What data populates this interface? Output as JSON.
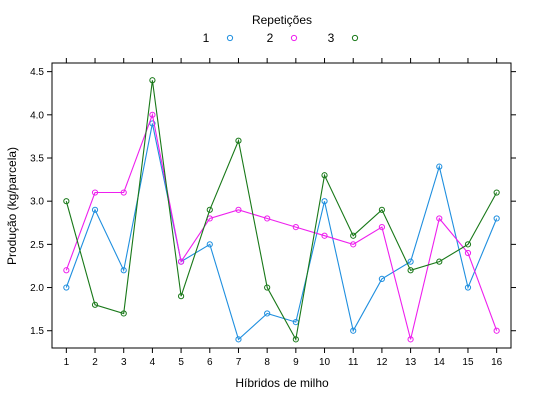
{
  "chart_data": {
    "type": "line",
    "title": "",
    "xlabel": "Híbridos de milho",
    "ylabel": "Produção (kg/parcela)",
    "legend_title": "Repetições",
    "legend_position": "top",
    "x": [
      "1",
      "2",
      "3",
      "4",
      "5",
      "6",
      "7",
      "8",
      "9",
      "10",
      "11",
      "12",
      "13",
      "14",
      "15",
      "16"
    ],
    "xlim": [
      0.5,
      16.5
    ],
    "ylim": [
      1.3,
      4.6
    ],
    "yticks": [
      "1.5",
      "2.0",
      "2.5",
      "3.0",
      "3.5",
      "4.0",
      "4.5"
    ],
    "grid": false,
    "series": [
      {
        "name": "1",
        "color": "#1f8fdf",
        "values": [
          2.0,
          2.9,
          2.2,
          3.9,
          2.3,
          2.5,
          1.4,
          1.7,
          1.6,
          3.0,
          1.5,
          2.1,
          2.3,
          3.4,
          2.0,
          2.8
        ]
      },
      {
        "name": "2",
        "color": "#ee1fee",
        "values": [
          2.2,
          3.1,
          3.1,
          4.0,
          2.3,
          2.8,
          2.9,
          2.8,
          2.7,
          2.6,
          2.5,
          2.7,
          1.4,
          2.8,
          2.4,
          1.5
        ]
      },
      {
        "name": "3",
        "color": "#187818",
        "values": [
          3.0,
          1.8,
          1.7,
          4.4,
          1.9,
          2.9,
          3.7,
          2.0,
          1.4,
          3.3,
          2.6,
          2.9,
          2.2,
          2.3,
          2.5,
          3.1
        ]
      }
    ]
  }
}
